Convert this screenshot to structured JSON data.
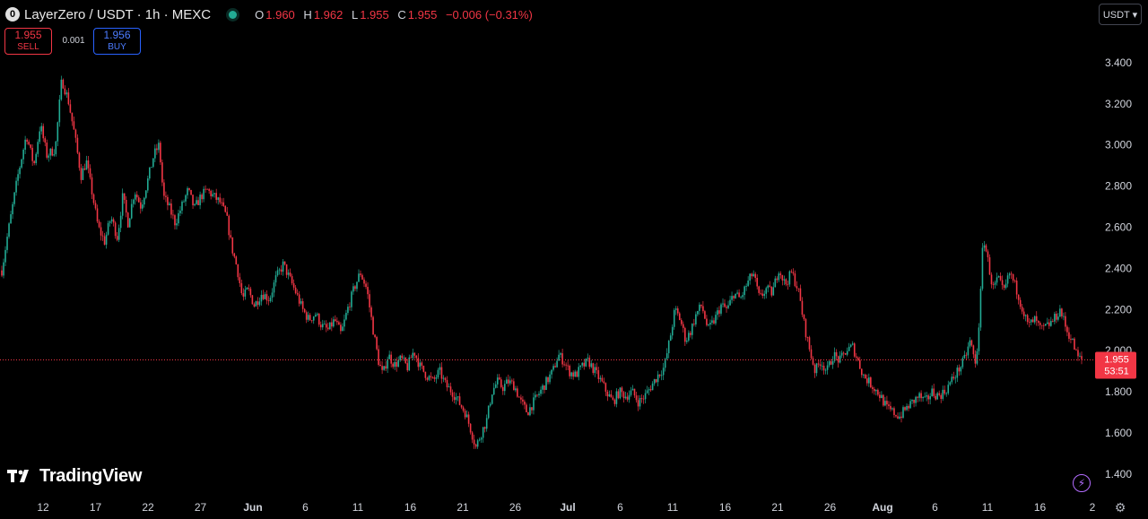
{
  "header": {
    "symbol_icon": "0",
    "title": "LayerZero / USDT · 1h · MEXC",
    "ohlc": {
      "o_label": "O",
      "o": "1.960",
      "h_label": "H",
      "h": "1.962",
      "l_label": "L",
      "l": "1.955",
      "c_label": "C",
      "c": "1.955",
      "change": "−0.006 (−0.31%)"
    }
  },
  "trade": {
    "sell_price": "1.955",
    "sell_label": "SELL",
    "spread": "0.001",
    "buy_price": "1.956",
    "buy_label": "BUY"
  },
  "currency_button": "USDT ▾",
  "branding": {
    "logo_text": "TradingView"
  },
  "icons": {
    "bolt": "lightning-icon",
    "gear": "gear-icon",
    "logo": "tradingview-logo-icon"
  },
  "colors": {
    "up": "#22ab94",
    "down": "#f23645",
    "background": "#000000",
    "axis_text": "#d1d4dc"
  },
  "chart_data": {
    "type": "candlestick",
    "symbol": "LayerZero / USDT",
    "interval": "1h",
    "exchange": "MEXC",
    "ylim": [
      1.33,
      3.53
    ],
    "y_ticks": [
      "3.400",
      "3.200",
      "3.000",
      "2.800",
      "2.600",
      "2.400",
      "2.200",
      "2.000",
      "1.800",
      "1.600",
      "1.400"
    ],
    "x_ticks": [
      "12",
      "17",
      "22",
      "27",
      "Jun",
      "6",
      "11",
      "16",
      "21",
      "26",
      "Jul",
      "6",
      "11",
      "16",
      "21",
      "26",
      "Aug",
      "6",
      "11",
      "16",
      "2"
    ],
    "x_tick_bold": [
      "Jun",
      "Jul",
      "Aug"
    ],
    "last_price": "1.955",
    "countdown": "53:51",
    "price_path": [
      [
        0,
        2.39
      ],
      [
        0.5,
        2.55
      ],
      [
        1.5,
        2.85
      ],
      [
        2.3,
        3.05
      ],
      [
        3,
        2.9
      ],
      [
        3.6,
        3.1
      ],
      [
        4.2,
        2.95
      ],
      [
        5,
        2.98
      ],
      [
        5.6,
        3.32
      ],
      [
        6.2,
        3.22
      ],
      [
        6.8,
        3.05
      ],
      [
        7.4,
        2.85
      ],
      [
        7.9,
        2.92
      ],
      [
        8.5,
        2.75
      ],
      [
        9,
        2.6
      ],
      [
        9.6,
        2.53
      ],
      [
        10.2,
        2.65
      ],
      [
        10.8,
        2.55
      ],
      [
        11.3,
        2.75
      ],
      [
        11.8,
        2.62
      ],
      [
        12.4,
        2.78
      ],
      [
        13,
        2.7
      ],
      [
        13.6,
        2.82
      ],
      [
        14.2,
        2.95
      ],
      [
        14.7,
        3.0
      ],
      [
        15.1,
        2.75
      ],
      [
        15.6,
        2.7
      ],
      [
        16.2,
        2.62
      ],
      [
        16.8,
        2.7
      ],
      [
        17.4,
        2.78
      ],
      [
        18,
        2.69
      ],
      [
        18.6,
        2.75
      ],
      [
        19.2,
        2.78
      ],
      [
        19.8,
        2.75
      ],
      [
        20.4,
        2.72
      ],
      [
        21,
        2.65
      ],
      [
        21.5,
        2.5
      ],
      [
        22,
        2.4
      ],
      [
        22.5,
        2.25
      ],
      [
        23,
        2.3
      ],
      [
        23.6,
        2.22
      ],
      [
        24.3,
        2.28
      ],
      [
        25,
        2.25
      ],
      [
        25.6,
        2.35
      ],
      [
        26.3,
        2.42
      ],
      [
        26.9,
        2.35
      ],
      [
        27.5,
        2.28
      ],
      [
        28.1,
        2.2
      ],
      [
        28.7,
        2.15
      ],
      [
        29.3,
        2.18
      ],
      [
        29.9,
        2.12
      ],
      [
        30.5,
        2.1
      ],
      [
        31.1,
        2.15
      ],
      [
        31.7,
        2.08
      ],
      [
        32.3,
        2.2
      ],
      [
        32.9,
        2.3
      ],
      [
        33.5,
        2.38
      ],
      [
        34.1,
        2.3
      ],
      [
        34.7,
        2.1
      ],
      [
        35.2,
        1.95
      ],
      [
        35.6,
        1.88
      ],
      [
        36.1,
        1.98
      ],
      [
        36.7,
        1.93
      ],
      [
        37.3,
        1.96
      ],
      [
        37.9,
        1.92
      ],
      [
        38.5,
        2.0
      ],
      [
        39.1,
        1.92
      ],
      [
        39.7,
        1.88
      ],
      [
        40.3,
        1.85
      ],
      [
        40.9,
        1.9
      ],
      [
        41.5,
        1.83
      ],
      [
        42.1,
        1.8
      ],
      [
        42.7,
        1.75
      ],
      [
        43.3,
        1.7
      ],
      [
        43.8,
        1.62
      ],
      [
        44.3,
        1.53
      ],
      [
        44.8,
        1.6
      ],
      [
        45.3,
        1.66
      ],
      [
        45.8,
        1.8
      ],
      [
        46.3,
        1.85
      ],
      [
        46.8,
        1.82
      ],
      [
        47.3,
        1.85
      ],
      [
        47.9,
        1.83
      ],
      [
        48.5,
        1.75
      ],
      [
        49.1,
        1.7
      ],
      [
        49.7,
        1.75
      ],
      [
        50.3,
        1.8
      ],
      [
        50.9,
        1.85
      ],
      [
        51.5,
        1.9
      ],
      [
        52,
        1.98
      ],
      [
        52.5,
        1.95
      ],
      [
        53,
        1.9
      ],
      [
        53.6,
        1.88
      ],
      [
        54.2,
        1.92
      ],
      [
        54.8,
        1.95
      ],
      [
        55.4,
        1.9
      ],
      [
        56,
        1.85
      ],
      [
        56.5,
        1.8
      ],
      [
        57.1,
        1.75
      ],
      [
        57.7,
        1.8
      ],
      [
        58.3,
        1.78
      ],
      [
        58.9,
        1.8
      ],
      [
        59.5,
        1.75
      ],
      [
        60.1,
        1.78
      ],
      [
        60.7,
        1.83
      ],
      [
        61.3,
        1.88
      ],
      [
        61.9,
        1.92
      ],
      [
        62.4,
        2.05
      ],
      [
        62.9,
        2.2
      ],
      [
        63.4,
        2.15
      ],
      [
        63.9,
        2.05
      ],
      [
        64.4,
        2.1
      ],
      [
        64.9,
        2.18
      ],
      [
        65.4,
        2.22
      ],
      [
        66,
        2.1
      ],
      [
        66.6,
        2.15
      ],
      [
        67.2,
        2.22
      ],
      [
        67.8,
        2.2
      ],
      [
        68.4,
        2.28
      ],
      [
        69,
        2.25
      ],
      [
        69.6,
        2.32
      ],
      [
        70.2,
        2.38
      ],
      [
        70.8,
        2.25
      ],
      [
        71.4,
        2.3
      ],
      [
        72,
        2.28
      ],
      [
        72.6,
        2.4
      ],
      [
        73.2,
        2.32
      ],
      [
        73.8,
        2.38
      ],
      [
        74.4,
        2.3
      ],
      [
        75,
        2.12
      ],
      [
        75.5,
        2.0
      ],
      [
        76,
        1.9
      ],
      [
        76.5,
        1.95
      ],
      [
        77.1,
        1.9
      ],
      [
        77.7,
        1.98
      ],
      [
        78.3,
        1.95
      ],
      [
        78.9,
        2.0
      ],
      [
        79.5,
        2.02
      ],
      [
        80,
        1.95
      ],
      [
        80.5,
        1.88
      ],
      [
        81,
        1.85
      ],
      [
        81.5,
        1.82
      ],
      [
        82.1,
        1.78
      ],
      [
        82.7,
        1.72
      ],
      [
        83.3,
        1.7
      ],
      [
        83.9,
        1.68
      ],
      [
        84.5,
        1.72
      ],
      [
        85.1,
        1.75
      ],
      [
        85.7,
        1.78
      ],
      [
        86.3,
        1.75
      ],
      [
        86.9,
        1.8
      ],
      [
        87.5,
        1.78
      ],
      [
        88.1,
        1.8
      ],
      [
        88.7,
        1.85
      ],
      [
        89.3,
        1.9
      ],
      [
        89.9,
        1.95
      ],
      [
        90.5,
        2.05
      ],
      [
        91,
        1.92
      ],
      [
        91.4,
        2.2
      ],
      [
        91.7,
        2.56
      ],
      [
        92.1,
        2.45
      ],
      [
        92.6,
        2.3
      ],
      [
        93.1,
        2.35
      ],
      [
        93.6,
        2.28
      ],
      [
        94.2,
        2.38
      ],
      [
        94.8,
        2.3
      ],
      [
        95.4,
        2.2
      ],
      [
        95.9,
        2.12
      ],
      [
        96.5,
        2.15
      ],
      [
        97.1,
        2.1
      ],
      [
        97.7,
        2.12
      ],
      [
        98.3,
        2.15
      ],
      [
        98.9,
        2.2
      ],
      [
        99.5,
        2.1
      ],
      [
        100,
        2.05
      ],
      [
        100.5,
        1.97
      ],
      [
        100.9,
        1.955
      ]
    ]
  }
}
